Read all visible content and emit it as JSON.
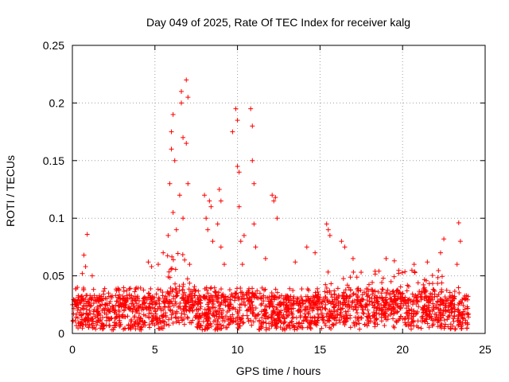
{
  "chart_data": {
    "type": "scatter",
    "title": "Day 049 of 2025, Rate Of TEC Index for receiver kalg",
    "xlabel": "GPS time / hours",
    "ylabel": "ROTI / TECUs",
    "xlim": [
      0,
      25
    ],
    "ylim": [
      0,
      0.25
    ],
    "x_ticks": [
      0,
      5,
      10,
      15,
      20,
      25
    ],
    "y_ticks": [
      0,
      0.05,
      0.1,
      0.15,
      0.2,
      0.25
    ],
    "x_tick_labels": [
      "0",
      "5",
      "10",
      "15",
      "20",
      "25"
    ],
    "y_tick_labels": [
      "0",
      "0.05",
      "0.1",
      "0.15",
      "0.2",
      "0.25"
    ],
    "grid": true,
    "marker": "plus",
    "color": "#ff0000",
    "series": [
      {
        "x_range": [
          0,
          24
        ],
        "baseline_level": 0.015,
        "background_level": 0.03,
        "points": [
          [
            0.9,
            0.086
          ],
          [
            0.7,
            0.068
          ],
          [
            0.8,
            0.058
          ],
          [
            0.6,
            0.052
          ],
          [
            1.2,
            0.05
          ],
          [
            0.3,
            0.04
          ],
          [
            4.6,
            0.062
          ],
          [
            4.8,
            0.058
          ],
          [
            5.2,
            0.06
          ],
          [
            5.5,
            0.07
          ],
          [
            5.8,
            0.085
          ],
          [
            5.9,
            0.13
          ],
          [
            6.0,
            0.16
          ],
          [
            6.0,
            0.175
          ],
          [
            6.1,
            0.19
          ],
          [
            6.1,
            0.105
          ],
          [
            6.2,
            0.15
          ],
          [
            6.3,
            0.09
          ],
          [
            6.5,
            0.12
          ],
          [
            6.6,
            0.2
          ],
          [
            6.6,
            0.21
          ],
          [
            6.7,
            0.17
          ],
          [
            6.7,
            0.1
          ],
          [
            6.9,
            0.22
          ],
          [
            7.0,
            0.205
          ],
          [
            6.9,
            0.165
          ],
          [
            7.0,
            0.13
          ],
          [
            7.1,
            0.06
          ],
          [
            8.0,
            0.12
          ],
          [
            8.1,
            0.1
          ],
          [
            8.2,
            0.09
          ],
          [
            8.3,
            0.115
          ],
          [
            8.4,
            0.11
          ],
          [
            8.5,
            0.08
          ],
          [
            8.8,
            0.095
          ],
          [
            8.9,
            0.125
          ],
          [
            9.0,
            0.115
          ],
          [
            9.0,
            0.075
          ],
          [
            9.2,
            0.06
          ],
          [
            9.7,
            0.175
          ],
          [
            9.9,
            0.195
          ],
          [
            10.0,
            0.185
          ],
          [
            10.0,
            0.145
          ],
          [
            10.1,
            0.14
          ],
          [
            10.1,
            0.11
          ],
          [
            10.2,
            0.08
          ],
          [
            10.3,
            0.06
          ],
          [
            10.4,
            0.085
          ],
          [
            10.8,
            0.195
          ],
          [
            10.9,
            0.18
          ],
          [
            10.9,
            0.15
          ],
          [
            11.0,
            0.13
          ],
          [
            11.0,
            0.095
          ],
          [
            11.1,
            0.075
          ],
          [
            12.1,
            0.12
          ],
          [
            12.2,
            0.115
          ],
          [
            12.3,
            0.118
          ],
          [
            12.4,
            0.1
          ],
          [
            11.7,
            0.065
          ],
          [
            13.5,
            0.062
          ],
          [
            14.2,
            0.075
          ],
          [
            14.7,
            0.07
          ],
          [
            15.4,
            0.095
          ],
          [
            15.5,
            0.09
          ],
          [
            15.6,
            0.085
          ],
          [
            16.3,
            0.08
          ],
          [
            16.5,
            0.075
          ],
          [
            17.0,
            0.065
          ],
          [
            19.0,
            0.065
          ],
          [
            19.5,
            0.063
          ],
          [
            20.7,
            0.06
          ],
          [
            21.5,
            0.062
          ],
          [
            22.3,
            0.07
          ],
          [
            22.5,
            0.082
          ],
          [
            23.4,
            0.096
          ],
          [
            23.5,
            0.08
          ],
          [
            23.3,
            0.06
          ]
        ]
      }
    ]
  }
}
